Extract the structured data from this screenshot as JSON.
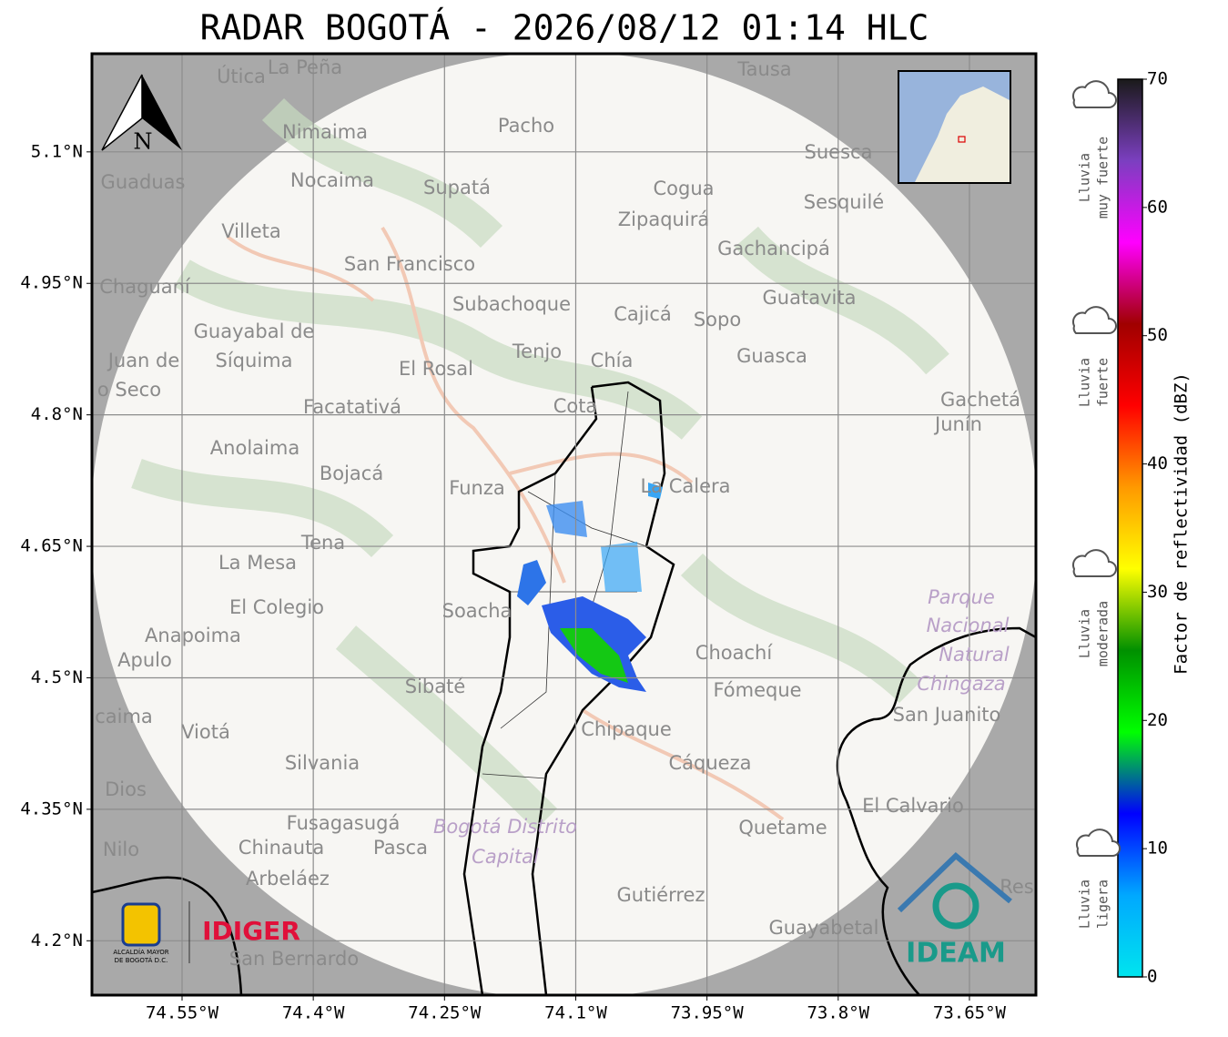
{
  "title": "RADAR BOGOTÁ - 2026/08/12 01:14 HLC",
  "map": {
    "xlim": [
      -74.653,
      -73.574
    ],
    "ylim": [
      4.138,
      5.212
    ],
    "xticks": [
      {
        "value": -74.55,
        "label": "74.55°W"
      },
      {
        "value": -74.4,
        "label": "74.4°W"
      },
      {
        "value": -74.25,
        "label": "74.25°W"
      },
      {
        "value": -74.1,
        "label": "74.1°W"
      },
      {
        "value": -73.95,
        "label": "73.95°W"
      },
      {
        "value": -73.8,
        "label": "73.8°W"
      },
      {
        "value": -73.65,
        "label": "73.65°W"
      }
    ],
    "yticks": [
      {
        "value": 5.1,
        "label": "5.1°N"
      },
      {
        "value": 4.95,
        "label": "4.95°N"
      },
      {
        "value": 4.8,
        "label": "4.8°N"
      },
      {
        "value": 4.65,
        "label": "4.65°N"
      },
      {
        "value": 4.5,
        "label": "4.5°N"
      },
      {
        "value": 4.35,
        "label": "4.35°N"
      },
      {
        "value": 4.2,
        "label": "4.2°N"
      }
    ],
    "grid": true,
    "places": [
      "Útica",
      "La Peña",
      "Tausa",
      "Pacho",
      "Nimaima",
      "Guaduas",
      "Nocaima",
      "Supatá",
      "Cogua",
      "Suesca",
      "Sesquilé",
      "Zipaquirá",
      "Villeta",
      "Gachancipá",
      "San Francisco",
      "Chaguaní",
      "Guatavita",
      "Subachoque",
      "Cajicá",
      "Sopo",
      "Guayabal de",
      "Síquima",
      "Juan de",
      "o Seco",
      "Tenjo",
      "Chía",
      "Guasca",
      "El Rosal",
      "Facatativá",
      "Cota",
      "Gachetá",
      "Junín",
      "Anolaima",
      "Bojacá",
      "Funza",
      "La Calera",
      "Tena",
      "La Mesa",
      "Soacha",
      "El Colegio",
      "Anapoima",
      "Apulo",
      "Choachí",
      "Sibaté",
      "Fómeque",
      "San Juanito",
      "caima",
      "Viotá",
      "Chipaque",
      "Silvania",
      "Cáqueza",
      "Dios",
      "El Calvario",
      "Fusagasugá",
      "Quetame",
      "Nilo",
      "Chinauta",
      "Pasca",
      "Arbeláez",
      "Gutiérrez",
      "Res",
      "Guayabetal",
      "San Bernardo"
    ],
    "areas": [
      "Parque",
      "Nacional",
      "Natural",
      "Chingaza",
      "Bogotá Distrito",
      "Capital"
    ],
    "north": "N"
  },
  "colorbar": {
    "lim": [
      0,
      70
    ],
    "ticks": [
      0,
      10,
      20,
      30,
      40,
      50,
      60,
      70
    ],
    "label": "Factor de reflectividad (dBZ)",
    "colors": [
      "#00e5ee",
      "#00a8ff",
      "#0000ff",
      "#00ff00",
      "#009000",
      "#ffff00",
      "#ff9900",
      "#ff0000",
      "#a00000",
      "#ff00ff",
      "#7b3fc0",
      "#1a1a1a"
    ]
  },
  "legend": [
    [
      "Lluvia",
      "muy fuerte"
    ],
    [
      "Lluvia",
      "fuerte"
    ],
    [
      "Lluvia",
      "moderada"
    ],
    [
      "Lluvia",
      "ligera"
    ]
  ],
  "logos": {
    "alcaldia": [
      "ALCALDÍA MAYOR",
      "DE BOGOTÁ D.C."
    ],
    "idiger": "IDIGER",
    "ideam": "IDEAM"
  }
}
